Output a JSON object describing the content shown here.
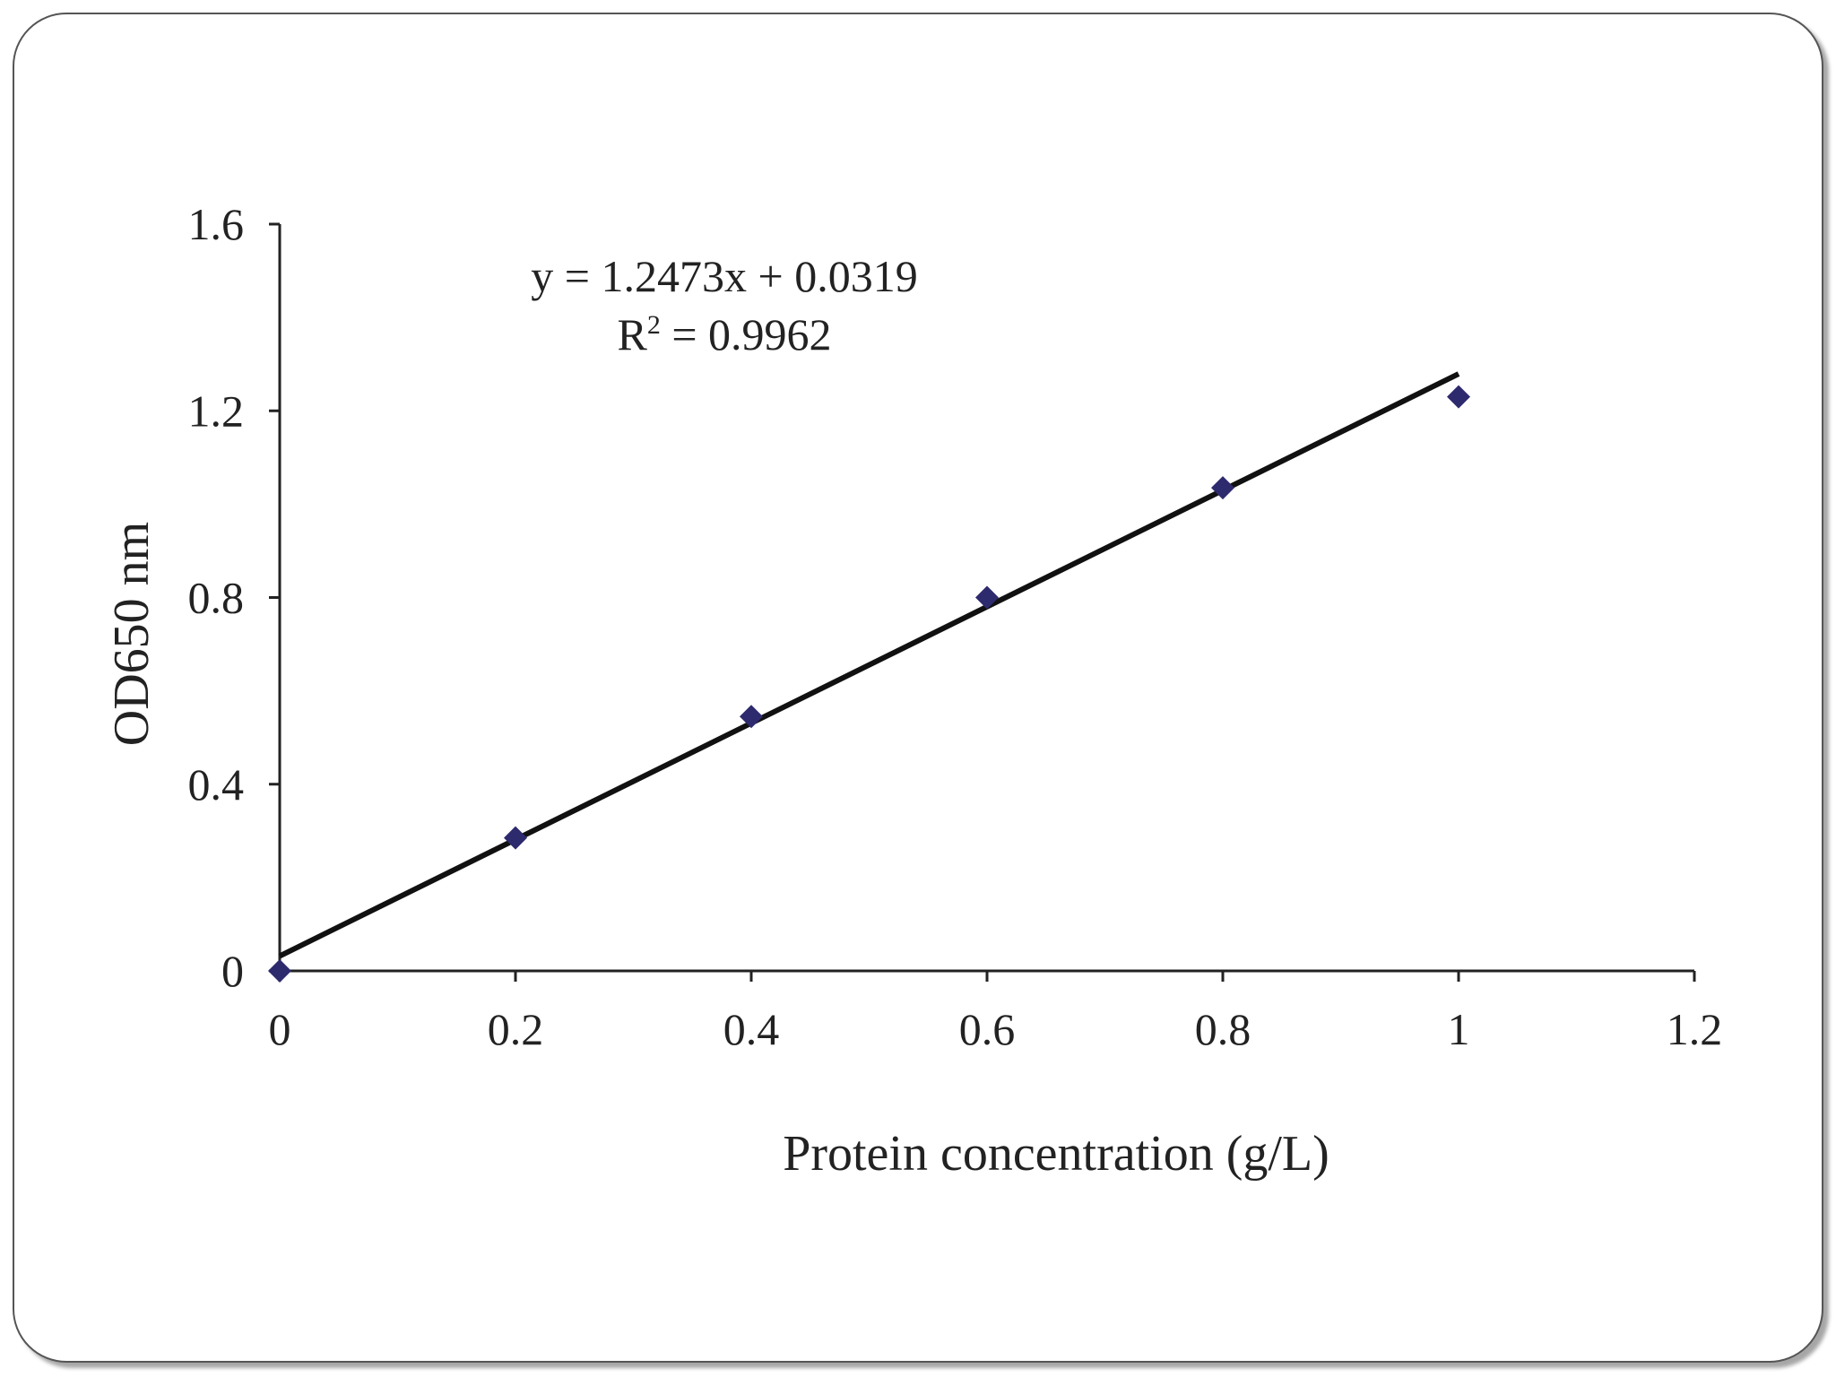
{
  "chart_data": {
    "type": "scatter",
    "xlabel": "Protein concentration (g/L)",
    "ylabel": "OD650 nm",
    "xlim": [
      0,
      1.2
    ],
    "ylim": [
      0,
      1.6
    ],
    "x_ticks": [
      "0",
      "0.2",
      "0.4",
      "0.6",
      "0.8",
      "1",
      "1.2"
    ],
    "y_ticks": [
      "0",
      "0.4",
      "0.8",
      "1.2",
      "1.6"
    ],
    "x": [
      0,
      0.2,
      0.4,
      0.6,
      0.8,
      1.0
    ],
    "y": [
      0,
      0.285,
      0.545,
      0.8,
      1.035,
      1.23
    ],
    "trendline": {
      "slope": 1.2473,
      "intercept": 0.0319,
      "x_range": [
        0,
        1.0
      ]
    },
    "annotations": {
      "equation": "y = 1.2473x + 0.0319",
      "r2_prefix": "R",
      "r2_sup": "2",
      "r2_value": " = 0.9962"
    },
    "marker_color": "#2e2a6e",
    "line_color": "#111111",
    "grid": false
  }
}
